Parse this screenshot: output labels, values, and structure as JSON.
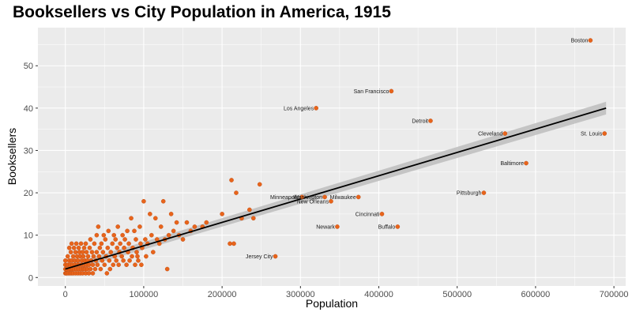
{
  "chart_data": {
    "type": "scatter",
    "title": "Booksellers vs City Population in America, 1915",
    "xlabel": "Population",
    "ylabel": "Booksellers",
    "xlim": [
      -35000,
      715000
    ],
    "ylim": [
      -2,
      59
    ],
    "x_ticks": [
      0,
      100000,
      200000,
      300000,
      400000,
      500000,
      600000,
      700000
    ],
    "y_ticks": [
      0,
      10,
      20,
      30,
      40,
      50
    ],
    "grid": true,
    "legend": "none",
    "colors": {
      "panel": "#ebebeb",
      "grid": "#ffffff",
      "point": "#e8641b",
      "point_edge": "#b9460d",
      "fit_line": "#000000",
      "ribbon": "#bdbdbd"
    },
    "trend_line": {
      "method": "linear fit with confidence band",
      "x": [
        0,
        690000
      ],
      "y": [
        2,
        40
      ],
      "band_halfwidth": [
        0.8,
        1.5
      ]
    },
    "labeled_points": [
      {
        "name": "Boston",
        "x": 670000,
        "y": 56
      },
      {
        "name": "San Francisco",
        "x": 416000,
        "y": 44
      },
      {
        "name": "Los Angeles",
        "x": 320000,
        "y": 40
      },
      {
        "name": "Detroit",
        "x": 466000,
        "y": 37
      },
      {
        "name": "Cleveland",
        "x": 561000,
        "y": 34
      },
      {
        "name": "St. Louis",
        "x": 688000,
        "y": 34
      },
      {
        "name": "Baltimore",
        "x": 588000,
        "y": 27
      },
      {
        "name": "Pittsburgh",
        "x": 534000,
        "y": 20
      },
      {
        "name": "Minneapolis",
        "x": 302000,
        "y": 19
      },
      {
        "name": "Washington",
        "x": 331000,
        "y": 19
      },
      {
        "name": "Milwaukee",
        "x": 374000,
        "y": 19
      },
      {
        "name": "New Orleans",
        "x": 339000,
        "y": 18
      },
      {
        "name": "Cincinnati",
        "x": 404000,
        "y": 15
      },
      {
        "name": "Newark",
        "x": 347000,
        "y": 12
      },
      {
        "name": "Buffalo",
        "x": 424000,
        "y": 12
      },
      {
        "name": "Jersey City",
        "x": 268000,
        "y": 5
      }
    ],
    "points": [
      [
        0,
        1
      ],
      [
        0,
        2
      ],
      [
        0,
        3
      ],
      [
        0,
        4
      ],
      [
        1000,
        1
      ],
      [
        2000,
        1
      ],
      [
        2000,
        2
      ],
      [
        3000,
        3
      ],
      [
        3000,
        5
      ],
      [
        4000,
        1
      ],
      [
        5000,
        2
      ],
      [
        5000,
        4
      ],
      [
        5000,
        7
      ],
      [
        6000,
        1
      ],
      [
        6000,
        3
      ],
      [
        7000,
        2
      ],
      [
        7000,
        6
      ],
      [
        8000,
        1
      ],
      [
        8000,
        4
      ],
      [
        8000,
        8
      ],
      [
        9000,
        2
      ],
      [
        9000,
        3
      ],
      [
        10000,
        1
      ],
      [
        10000,
        5
      ],
      [
        11000,
        2
      ],
      [
        11000,
        7
      ],
      [
        12000,
        3
      ],
      [
        12000,
        4
      ],
      [
        13000,
        1
      ],
      [
        13000,
        6
      ],
      [
        14000,
        2
      ],
      [
        14000,
        8
      ],
      [
        15000,
        3
      ],
      [
        15000,
        5
      ],
      [
        16000,
        1
      ],
      [
        16000,
        4
      ],
      [
        17000,
        2
      ],
      [
        17000,
        7
      ],
      [
        18000,
        3
      ],
      [
        18000,
        6
      ],
      [
        19000,
        1
      ],
      [
        19000,
        5
      ],
      [
        20000,
        2
      ],
      [
        20000,
        8
      ],
      [
        21000,
        4
      ],
      [
        21000,
        3
      ],
      [
        22000,
        1
      ],
      [
        22000,
        6
      ],
      [
        23000,
        2
      ],
      [
        23000,
        5
      ],
      [
        24000,
        3
      ],
      [
        24000,
        7
      ],
      [
        25000,
        4
      ],
      [
        25000,
        2
      ],
      [
        26000,
        1
      ],
      [
        26000,
        8
      ],
      [
        27000,
        3
      ],
      [
        27000,
        6
      ],
      [
        28000,
        2
      ],
      [
        28000,
        4
      ],
      [
        29000,
        5
      ],
      [
        30000,
        1
      ],
      [
        30000,
        3
      ],
      [
        31000,
        7
      ],
      [
        32000,
        2
      ],
      [
        32000,
        9
      ],
      [
        33000,
        4
      ],
      [
        34000,
        6
      ],
      [
        35000,
        1
      ],
      [
        35000,
        3
      ],
      [
        36000,
        5
      ],
      [
        37000,
        8
      ],
      [
        38000,
        2
      ],
      [
        39000,
        4
      ],
      [
        40000,
        10
      ],
      [
        40000,
        6
      ],
      [
        41000,
        3
      ],
      [
        42000,
        12
      ],
      [
        43000,
        5
      ],
      [
        44000,
        7
      ],
      [
        45000,
        2
      ],
      [
        46000,
        8
      ],
      [
        47000,
        4
      ],
      [
        48000,
        6
      ],
      [
        49000,
        10
      ],
      [
        50000,
        3
      ],
      [
        51000,
        9
      ],
      [
        52000,
        5
      ],
      [
        53000,
        1
      ],
      [
        54000,
        7
      ],
      [
        55000,
        11
      ],
      [
        56000,
        4
      ],
      [
        57000,
        2
      ],
      [
        58000,
        6
      ],
      [
        60000,
        8
      ],
      [
        61000,
        3
      ],
      [
        62000,
        10
      ],
      [
        63000,
        5
      ],
      [
        64000,
        9
      ],
      [
        65000,
        4
      ],
      [
        66000,
        7
      ],
      [
        67000,
        12
      ],
      [
        68000,
        3
      ],
      [
        69000,
        6
      ],
      [
        70000,
        8
      ],
      [
        72000,
        5
      ],
      [
        73000,
        10
      ],
      [
        74000,
        4
      ],
      [
        75000,
        7
      ],
      [
        76000,
        9
      ],
      [
        78000,
        3
      ],
      [
        79000,
        11
      ],
      [
        80000,
        6
      ],
      [
        81000,
        8
      ],
      [
        82000,
        4
      ],
      [
        84000,
        14
      ],
      [
        85000,
        5
      ],
      [
        86000,
        7
      ],
      [
        88000,
        11
      ],
      [
        89000,
        3
      ],
      [
        90000,
        9
      ],
      [
        91000,
        6
      ],
      [
        92000,
        5
      ],
      [
        93000,
        4
      ],
      [
        95000,
        12
      ],
      [
        96000,
        8
      ],
      [
        97000,
        3
      ],
      [
        98000,
        7
      ],
      [
        100000,
        18
      ],
      [
        102000,
        9
      ],
      [
        103000,
        5
      ],
      [
        105000,
        8
      ],
      [
        108000,
        15
      ],
      [
        110000,
        10
      ],
      [
        112000,
        6
      ],
      [
        115000,
        14
      ],
      [
        117000,
        9
      ],
      [
        120000,
        8
      ],
      [
        122000,
        12
      ],
      [
        125000,
        18
      ],
      [
        127000,
        9
      ],
      [
        130000,
        2
      ],
      [
        132000,
        10
      ],
      [
        135000,
        15
      ],
      [
        138000,
        11
      ],
      [
        142000,
        13
      ],
      [
        145000,
        10
      ],
      [
        150000,
        9
      ],
      [
        155000,
        13
      ],
      [
        160000,
        11
      ],
      [
        165000,
        12
      ],
      [
        175000,
        12
      ],
      [
        180000,
        13
      ],
      [
        200000,
        15
      ],
      [
        210000,
        8
      ],
      [
        212000,
        23
      ],
      [
        215000,
        8
      ],
      [
        218000,
        20
      ],
      [
        225000,
        14
      ],
      [
        235000,
        16
      ],
      [
        240000,
        14
      ],
      [
        248000,
        22
      ]
    ]
  }
}
